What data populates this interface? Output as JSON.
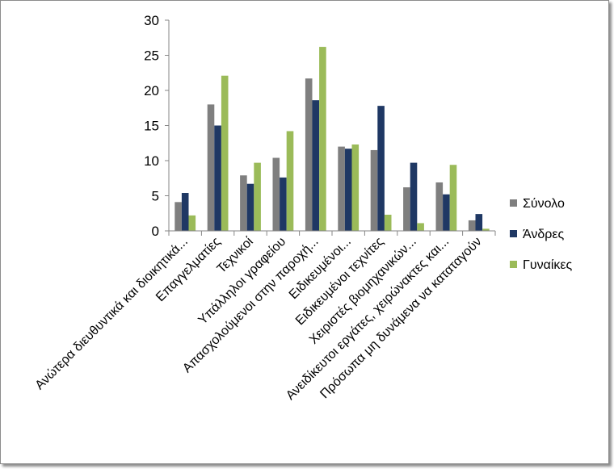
{
  "chart_data": {
    "type": "bar",
    "title": "",
    "xlabel": "",
    "ylabel": "",
    "ylim": [
      0,
      30
    ],
    "yticks": [
      0,
      5,
      10,
      15,
      20,
      25,
      30
    ],
    "grid": false,
    "legend_position": "right",
    "categories": [
      "Ανώτερα διευθυντικά και διοικητικά...",
      "Επαγγελματίες",
      "Τεχνικοί",
      "Υπάλληλοι γραφείου",
      "Απασχολούμενοι στην παροχή...",
      "Ειδικευμένοι...",
      "Ειδικευμένοι τεχνίτες",
      "Χειριστές βιομηχανικών...",
      "Ανειδίκευτοι εργάτες, χειρώνακτες και...",
      "Πρόσωπα μη δυνάμενα να καταταγούν"
    ],
    "series": [
      {
        "name": "Σύνολο",
        "color": "#7f7f7f",
        "values": [
          4.1,
          18.0,
          7.9,
          10.4,
          21.7,
          12.0,
          11.5,
          6.2,
          6.9,
          1.5
        ]
      },
      {
        "name": "Άνδρες",
        "color": "#1f3864",
        "values": [
          5.4,
          15.0,
          6.7,
          7.6,
          18.6,
          11.7,
          17.8,
          9.7,
          5.2,
          2.4
        ]
      },
      {
        "name": "Γυναίκες",
        "color": "#9bbb59",
        "values": [
          2.2,
          22.1,
          9.7,
          14.2,
          26.2,
          12.3,
          2.3,
          1.1,
          9.4,
          0.3
        ]
      }
    ]
  }
}
